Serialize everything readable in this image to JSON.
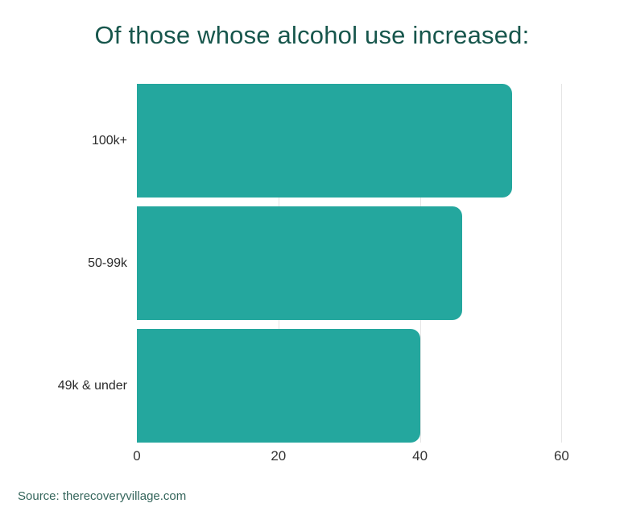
{
  "title": "Of those whose alcohol use increased:",
  "source": "Source: therecoveryvillage.com",
  "colors": {
    "bar": "#24A79E",
    "title": "#17564C",
    "source": "#34655B",
    "category_label": "#2B2B2B",
    "tick_label": "#333333",
    "gridline": "#E5E5E5",
    "background": "#FFFFFF"
  },
  "chart_data": {
    "type": "bar",
    "orientation": "horizontal",
    "title": "Of those whose alcohol use increased:",
    "categories": [
      "100k+",
      "50-99k",
      "49k & under"
    ],
    "values": [
      53,
      46,
      40
    ],
    "xlabel": "",
    "ylabel": "",
    "xlim": [
      0,
      62
    ],
    "xticks": [
      0,
      20,
      40,
      60
    ],
    "grid": true,
    "gridlines_at": [
      20,
      40,
      60
    ],
    "legend_position": "none",
    "source": "Source: therecoveryvillage.com"
  }
}
